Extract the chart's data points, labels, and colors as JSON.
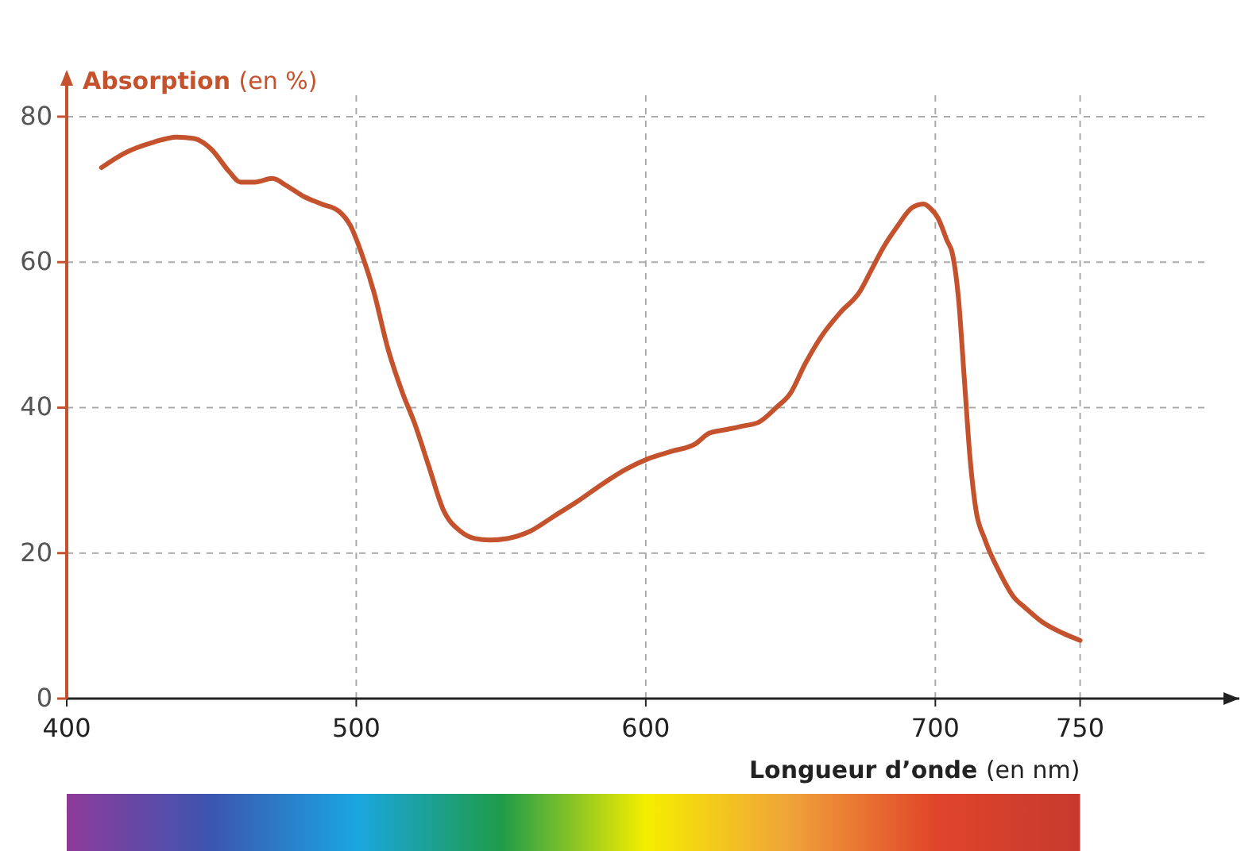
{
  "chart_data": {
    "type": "line",
    "xlabel": "Longueur d’onde (en nm)",
    "ylabel": "Absorption (en %)",
    "xlim": [
      400,
      805
    ],
    "ylim": [
      0,
      86
    ],
    "xticks": [
      400,
      500,
      600,
      700,
      750
    ],
    "yticks": [
      0,
      20,
      40,
      60,
      80
    ],
    "grid": true,
    "series": [
      {
        "color": "#c4522c",
        "x": [
          412,
          420,
          430,
          438,
          444,
          450,
          456,
          460,
          465,
          471,
          476,
          482,
          488,
          494,
          498,
          502,
          506,
          511,
          516,
          520,
          525,
          530,
          536,
          541,
          546,
          552,
          560,
          568,
          576,
          585,
          593,
          601,
          609,
          617,
          622,
          628,
          634,
          639,
          645,
          650,
          655,
          661,
          667,
          674,
          678,
          682,
          687,
          692,
          696,
          698,
          701,
          704,
          706,
          708,
          710,
          712,
          714,
          717,
          722,
          727,
          731,
          737,
          744,
          750
        ],
        "values": [
          73,
          75,
          76.5,
          77.2,
          77,
          75.5,
          72.5,
          71,
          71,
          71.5,
          70.5,
          69,
          68,
          67,
          65,
          61,
          56,
          48,
          42,
          38,
          32,
          26,
          23,
          22,
          21.8,
          22,
          23,
          25,
          27,
          29.5,
          31.5,
          33,
          34,
          35,
          36.5,
          37,
          37.5,
          38,
          40,
          42,
          46,
          50,
          53,
          56,
          59,
          62,
          65,
          67.5,
          68,
          67.5,
          66,
          63,
          61,
          55,
          44,
          33,
          26,
          22,
          17.5,
          14,
          12.5,
          10.5,
          9,
          8
        ]
      }
    ]
  }
}
